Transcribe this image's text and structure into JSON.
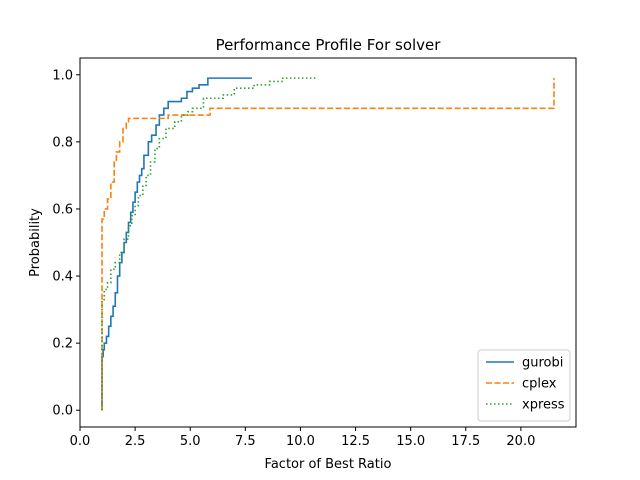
{
  "chart_data": {
    "type": "line",
    "title": "Performance Profile For solver",
    "xlabel": "Factor of Best Ratio",
    "ylabel": "Probability",
    "xlim": [
      0.0,
      22.5
    ],
    "ylim": [
      -0.05,
      1.05
    ],
    "xticks": [
      0.0,
      2.5,
      5.0,
      7.5,
      10.0,
      12.5,
      15.0,
      17.5,
      20.0
    ],
    "xtick_labels": [
      "0.0",
      "2.5",
      "5.0",
      "7.5",
      "10.0",
      "12.5",
      "15.0",
      "17.5",
      "20.0"
    ],
    "yticks": [
      0.0,
      0.2,
      0.4,
      0.6,
      0.8,
      1.0
    ],
    "ytick_labels": [
      "0.0",
      "0.2",
      "0.4",
      "0.6",
      "0.8",
      "1.0"
    ],
    "grid": false,
    "legend_position": "lower-right",
    "series": [
      {
        "name": "gurobi",
        "color": "#1f77b4",
        "dash": "solid",
        "step_points": [
          [
            1.0,
            0.0
          ],
          [
            1.0,
            0.16
          ],
          [
            1.05,
            0.18
          ],
          [
            1.1,
            0.2
          ],
          [
            1.2,
            0.22
          ],
          [
            1.3,
            0.25
          ],
          [
            1.4,
            0.28
          ],
          [
            1.5,
            0.31
          ],
          [
            1.6,
            0.35
          ],
          [
            1.7,
            0.4
          ],
          [
            1.8,
            0.44
          ],
          [
            1.9,
            0.47
          ],
          [
            2.0,
            0.5
          ],
          [
            2.1,
            0.53
          ],
          [
            2.2,
            0.56
          ],
          [
            2.3,
            0.59
          ],
          [
            2.4,
            0.62
          ],
          [
            2.5,
            0.65
          ],
          [
            2.6,
            0.68
          ],
          [
            2.7,
            0.7
          ],
          [
            2.8,
            0.72
          ],
          [
            2.9,
            0.76
          ],
          [
            3.1,
            0.8
          ],
          [
            3.25,
            0.82
          ],
          [
            3.45,
            0.85
          ],
          [
            3.6,
            0.88
          ],
          [
            3.8,
            0.9
          ],
          [
            4.0,
            0.92
          ],
          [
            4.6,
            0.93
          ],
          [
            4.85,
            0.95
          ],
          [
            5.1,
            0.96
          ],
          [
            5.4,
            0.97
          ],
          [
            5.8,
            0.99
          ],
          [
            7.8,
            0.99
          ]
        ]
      },
      {
        "name": "cplex",
        "color": "#ff7f0e",
        "dash": "dashed",
        "step_points": [
          [
            1.0,
            0.0
          ],
          [
            1.0,
            0.57
          ],
          [
            1.1,
            0.6
          ],
          [
            1.25,
            0.63
          ],
          [
            1.4,
            0.68
          ],
          [
            1.55,
            0.74
          ],
          [
            1.65,
            0.77
          ],
          [
            1.8,
            0.8
          ],
          [
            1.95,
            0.84
          ],
          [
            2.1,
            0.86
          ],
          [
            2.2,
            0.87
          ],
          [
            4.0,
            0.88
          ],
          [
            5.9,
            0.9
          ],
          [
            21.5,
            0.9
          ],
          [
            21.5,
            0.99
          ]
        ]
      },
      {
        "name": "xpress",
        "color": "#2ca02c",
        "dash": "dotted",
        "step_points": [
          [
            1.0,
            0.0
          ],
          [
            1.0,
            0.33
          ],
          [
            1.1,
            0.36
          ],
          [
            1.25,
            0.38
          ],
          [
            1.4,
            0.42
          ],
          [
            1.6,
            0.44
          ],
          [
            1.8,
            0.47
          ],
          [
            2.0,
            0.51
          ],
          [
            2.2,
            0.55
          ],
          [
            2.35,
            0.58
          ],
          [
            2.5,
            0.61
          ],
          [
            2.65,
            0.64
          ],
          [
            2.85,
            0.67
          ],
          [
            3.0,
            0.7
          ],
          [
            3.2,
            0.74
          ],
          [
            3.4,
            0.78
          ],
          [
            3.6,
            0.81
          ],
          [
            3.9,
            0.84
          ],
          [
            4.3,
            0.86
          ],
          [
            4.6,
            0.88
          ],
          [
            4.9,
            0.89
          ],
          [
            5.1,
            0.9
          ],
          [
            5.6,
            0.93
          ],
          [
            6.5,
            0.94
          ],
          [
            7.0,
            0.96
          ],
          [
            7.9,
            0.97
          ],
          [
            8.6,
            0.98
          ],
          [
            9.2,
            0.99
          ],
          [
            10.7,
            0.99
          ]
        ]
      }
    ]
  }
}
